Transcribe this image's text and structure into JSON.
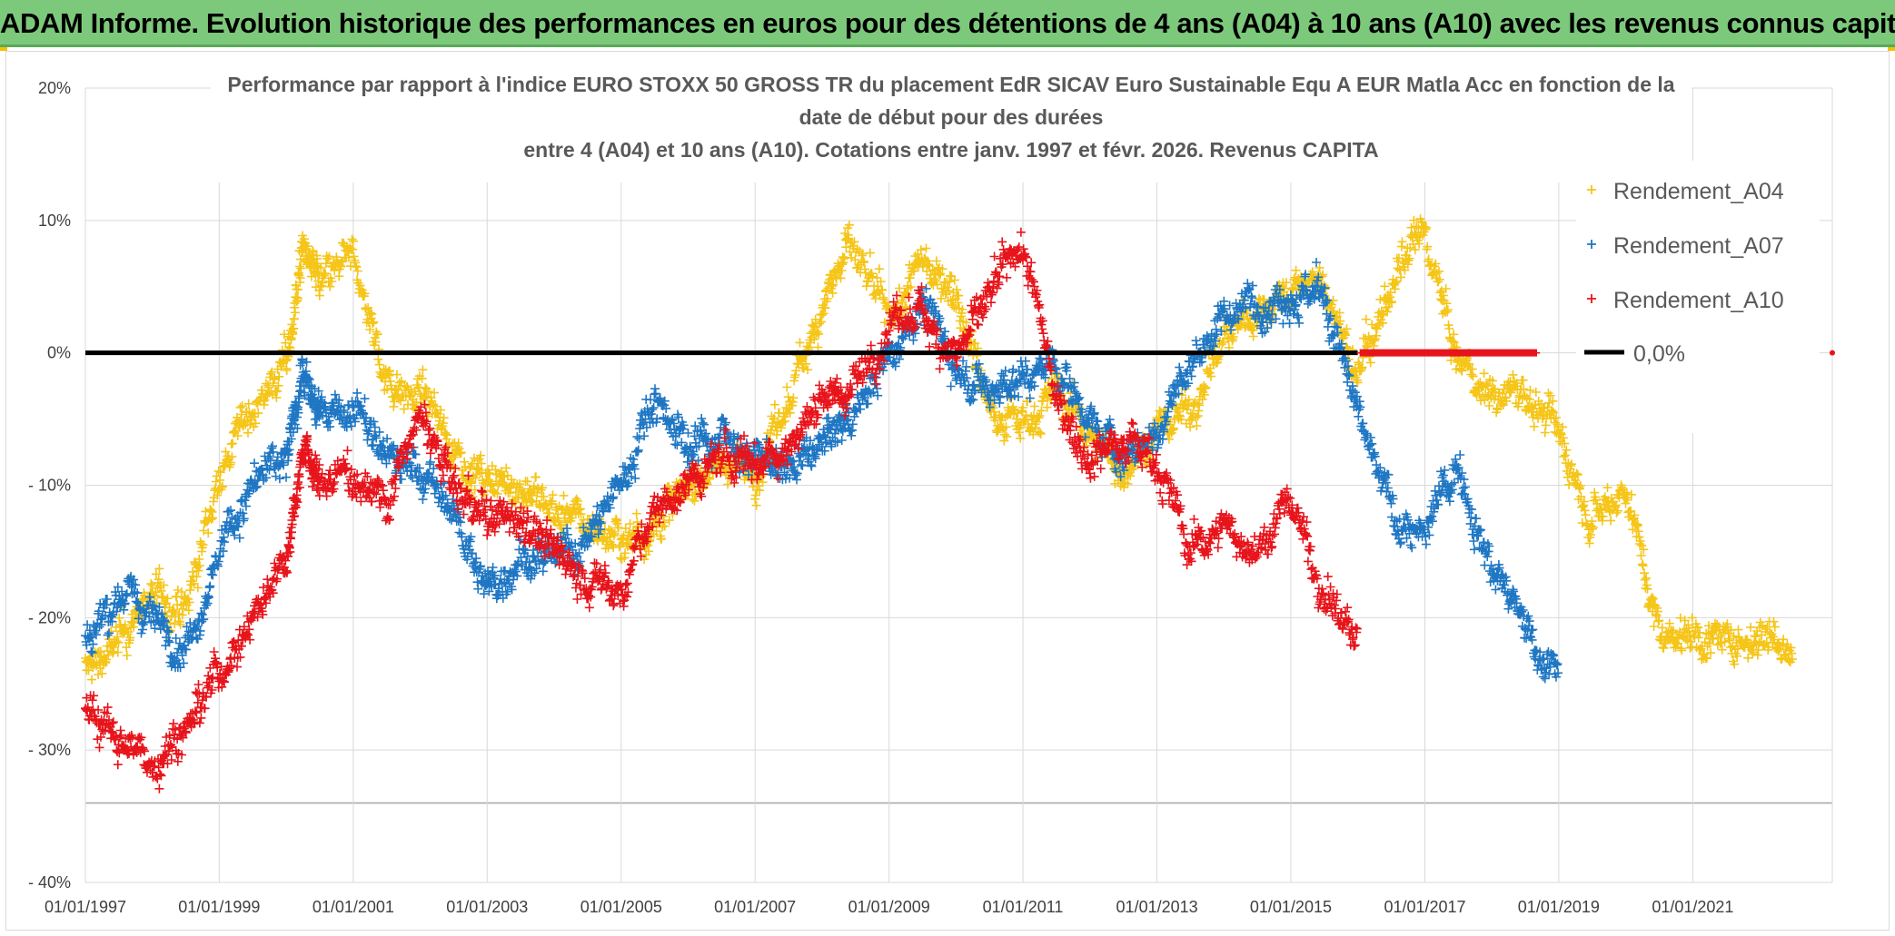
{
  "banner": {
    "title": "ADAM Informe. Evolution historique des performances en euros pour des détentions de 4 ans (A04) à 10 ans (A10) avec les revenus connus capitalisés"
  },
  "chart_data": {
    "type": "scatter",
    "title_lines": [
      "Performance par rapport à l'indice EURO STOXX 50 GROSS TR  du placement EdR SICAV Euro Sustainable Equ A EUR Matla Acc en fonction de la",
      "date de début pour des durées",
      "entre 4 (A04) et 10 ans (A10). Cotations entre janv. 1997 et févr. 2026. Revenus CAPITA"
    ],
    "xlabel": "",
    "ylabel": "",
    "x_ticks": [
      "01/01/1997",
      "01/01/1999",
      "01/01/2001",
      "01/01/2003",
      "01/01/2005",
      "01/01/2007",
      "01/01/2009",
      "01/01/2011",
      "01/01/2013",
      "01/01/2015",
      "01/01/2017",
      "01/01/2019",
      "01/01/2021"
    ],
    "y_ticks": [
      "20%",
      "10%",
      "0%",
      "- 10%",
      "- 20%",
      "- 30%",
      "- 40%"
    ],
    "xlim": [
      "1997-01-01",
      "2023-02-01"
    ],
    "ylim": [
      -40,
      20
    ],
    "grid": true,
    "legend_position": "right",
    "series": [
      {
        "name": "Rendement_A04",
        "color": "#f5c518",
        "marker": "+",
        "x": [
          "1997-01",
          "1997-07",
          "1998-01",
          "1998-07",
          "1999-01",
          "1999-07",
          "2000-01",
          "2000-04",
          "2000-07",
          "2001-01",
          "2001-07",
          "2002-01",
          "2002-07",
          "2003-01",
          "2003-07",
          "2004-01",
          "2004-07",
          "2005-01",
          "2005-07",
          "2006-01",
          "2006-07",
          "2007-01",
          "2007-07",
          "2008-01",
          "2008-06",
          "2009-01",
          "2009-07",
          "2010-01",
          "2010-07",
          "2011-01",
          "2011-07",
          "2012-01",
          "2012-07",
          "2013-01",
          "2013-07",
          "2014-01",
          "2014-07",
          "2015-01",
          "2015-07",
          "2016-01",
          "2016-07",
          "2017-01",
          "2017-07",
          "2018-01",
          "2018-07",
          "2019-01",
          "2019-07",
          "2020-01",
          "2020-07",
          "2021-01",
          "2021-07",
          "2022-01",
          "2022-07"
        ],
        "y": [
          -24,
          -22,
          -18,
          -20,
          -9,
          -4,
          -1,
          8,
          5,
          7,
          -2,
          -3,
          -7,
          -10,
          -10,
          -12,
          -13,
          -14,
          -13,
          -10,
          -8,
          -9,
          -4,
          4,
          8,
          2,
          7,
          5,
          -4,
          -5,
          -3,
          -6,
          -9,
          -6,
          -4,
          1,
          3,
          5,
          5,
          -2,
          5,
          9,
          -1,
          -3,
          -3,
          -6,
          -12,
          -10,
          -21,
          -21,
          -22,
          -21,
          -22
        ]
      },
      {
        "name": "Rendement_A07",
        "color": "#1f77c4",
        "marker": "+",
        "x": [
          "1997-01",
          "1997-07",
          "1998-01",
          "1998-07",
          "1999-01",
          "1999-07",
          "2000-01",
          "2000-04",
          "2000-07",
          "2001-01",
          "2001-07",
          "2002-01",
          "2002-07",
          "2003-01",
          "2003-07",
          "2004-01",
          "2004-07",
          "2005-01",
          "2005-07",
          "2006-01",
          "2006-07",
          "2007-01",
          "2007-07",
          "2008-01",
          "2008-06",
          "2009-01",
          "2009-07",
          "2010-01",
          "2010-07",
          "2011-01",
          "2011-07",
          "2012-01",
          "2012-07",
          "2013-01",
          "2013-07",
          "2014-01",
          "2014-07",
          "2015-01",
          "2015-07",
          "2016-01",
          "2016-07",
          "2017-01",
          "2017-07",
          "2018-01",
          "2018-07",
          "2019-01"
        ],
        "y": [
          -22,
          -18,
          -20,
          -22,
          -15,
          -10,
          -8,
          -1,
          -5,
          -4,
          -8,
          -9,
          -12,
          -18,
          -15,
          -16,
          -14,
          -10,
          -3,
          -7,
          -6,
          -8,
          -9,
          -7,
          -5,
          0,
          4,
          -1,
          -3,
          -2,
          -1,
          -5,
          -8,
          -6,
          -1,
          3,
          4,
          5,
          4,
          -5,
          -12,
          -14,
          -8,
          -16,
          -21,
          -24
        ]
      },
      {
        "name": "Rendement_A10",
        "color": "#e8141b",
        "marker": "+",
        "x": [
          "1997-01",
          "1997-07",
          "1998-01",
          "1998-07",
          "1999-01",
          "1999-07",
          "2000-01",
          "2000-04",
          "2000-07",
          "2001-01",
          "2001-07",
          "2002-01",
          "2002-07",
          "2003-01",
          "2003-07",
          "2004-01",
          "2004-07",
          "2005-01",
          "2005-07",
          "2006-01",
          "2006-07",
          "2007-01",
          "2007-07",
          "2008-01",
          "2008-06",
          "2009-01",
          "2009-07",
          "2010-01",
          "2010-07",
          "2011-01",
          "2011-07",
          "2012-01",
          "2012-07",
          "2013-01",
          "2013-07",
          "2014-01",
          "2014-07",
          "2015-01",
          "2015-07",
          "2016-01"
        ],
        "y": [
          -27,
          -29,
          -31,
          -28,
          -24,
          -20,
          -15,
          -7,
          -10,
          -9,
          -11,
          -5,
          -10,
          -13,
          -12,
          -15,
          -17,
          -18,
          -12,
          -10,
          -8,
          -8,
          -7,
          -3,
          -3,
          2,
          3,
          0,
          4,
          8,
          -3,
          -8,
          -6,
          -8,
          -15,
          -13,
          -15,
          -11,
          -18,
          -22
        ]
      },
      {
        "name": "0,0%",
        "color": "#000000",
        "marker": "line",
        "x": [
          "1997-01-01",
          "2016-01-01"
        ],
        "y": [
          0,
          0
        ]
      }
    ]
  }
}
